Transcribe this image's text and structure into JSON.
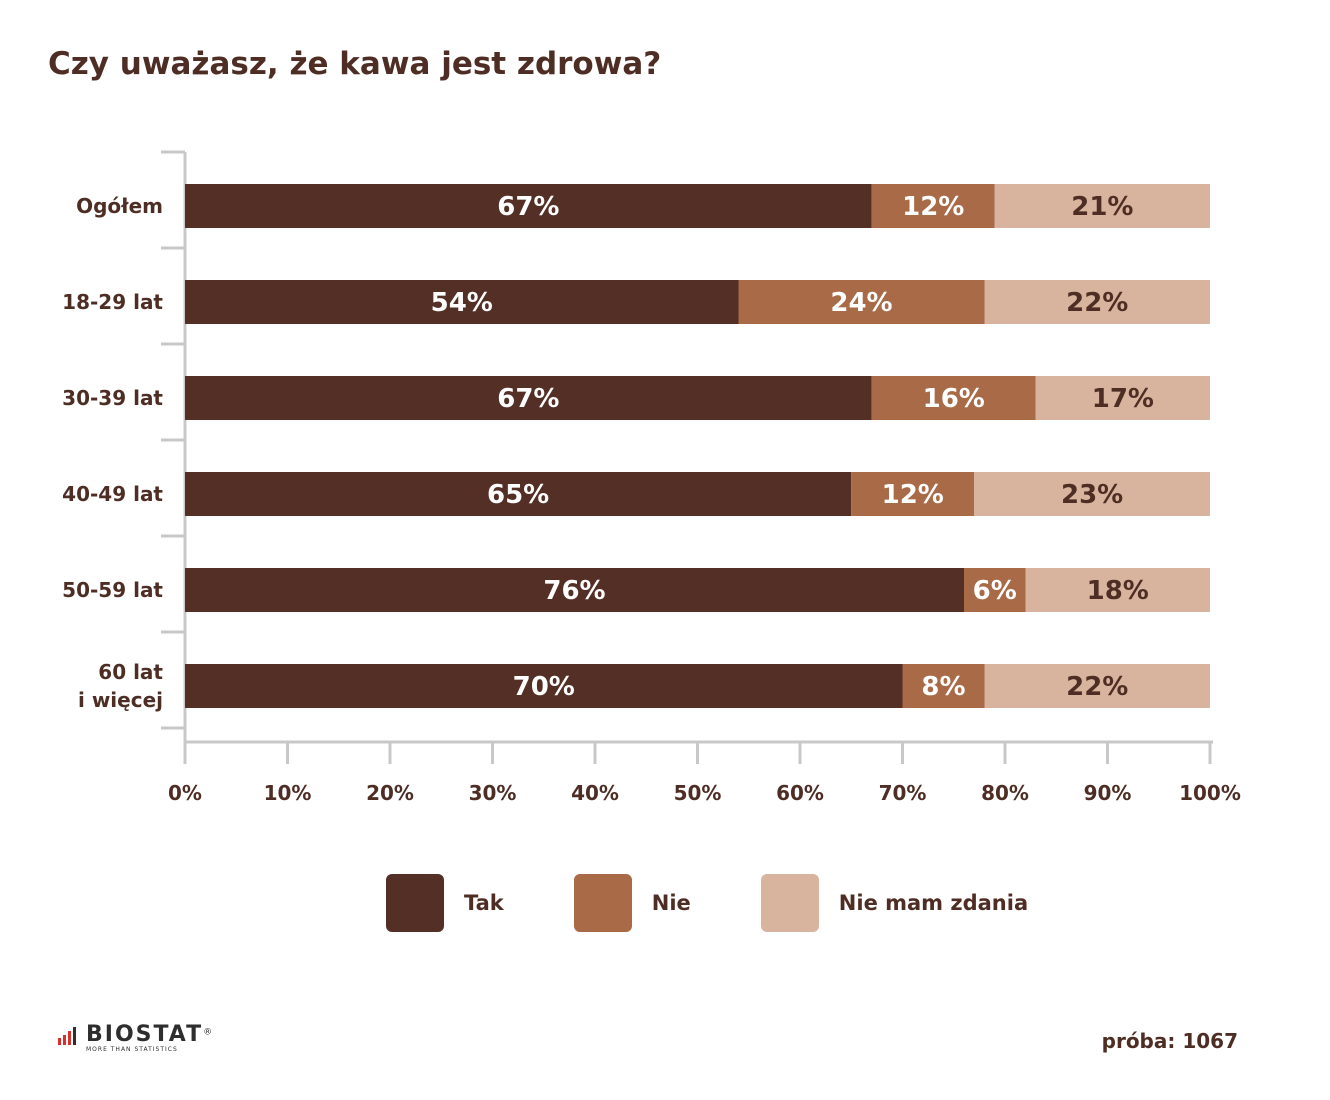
{
  "title": "Czy uważasz, że kawa jest zdrowa?",
  "chart_data": {
    "type": "bar",
    "orientation": "horizontal",
    "stacked": true,
    "categories": [
      [
        "Ogółem"
      ],
      [
        "18-29 lat"
      ],
      [
        "30-39 lat"
      ],
      [
        "40-49 lat"
      ],
      [
        "50-59 lat"
      ],
      [
        "60 lat",
        "i więcej"
      ]
    ],
    "series": [
      {
        "name": "Tak",
        "color": "#542f26",
        "values": [
          67,
          54,
          67,
          65,
          76,
          70
        ],
        "labels": [
          "67%",
          "54%",
          "67%",
          "65%",
          "76%",
          "70%"
        ]
      },
      {
        "name": "Nie",
        "color": "#a86a47",
        "values": [
          12,
          24,
          16,
          12,
          6,
          8
        ],
        "labels": [
          "12%",
          "24%",
          "16%",
          "12%",
          "6%",
          "8%"
        ]
      },
      {
        "name": "Nie mam zdania",
        "color": "#d8b49e",
        "values": [
          21,
          22,
          17,
          23,
          18,
          22
        ],
        "labels": [
          "21%",
          "22%",
          "17%",
          "23%",
          "18%",
          "22%"
        ]
      }
    ],
    "xlim": [
      0,
      100
    ],
    "xticks": [
      "0%",
      "10%",
      "20%",
      "30%",
      "40%",
      "50%",
      "60%",
      "70%",
      "80%",
      "90%",
      "100%"
    ],
    "grid": false,
    "legend_position": "bottom"
  },
  "legend": [
    {
      "label": "Tak",
      "color": "#542f26"
    },
    {
      "label": "Nie",
      "color": "#a86a47"
    },
    {
      "label": "Nie mam zdania",
      "color": "#d8b49e"
    }
  ],
  "footer": {
    "logo_text": "BIOSTAT",
    "logo_tagline": "MORE THAN STATISTICS",
    "registered_mark": "®",
    "sample_label": "próba: 1067"
  }
}
